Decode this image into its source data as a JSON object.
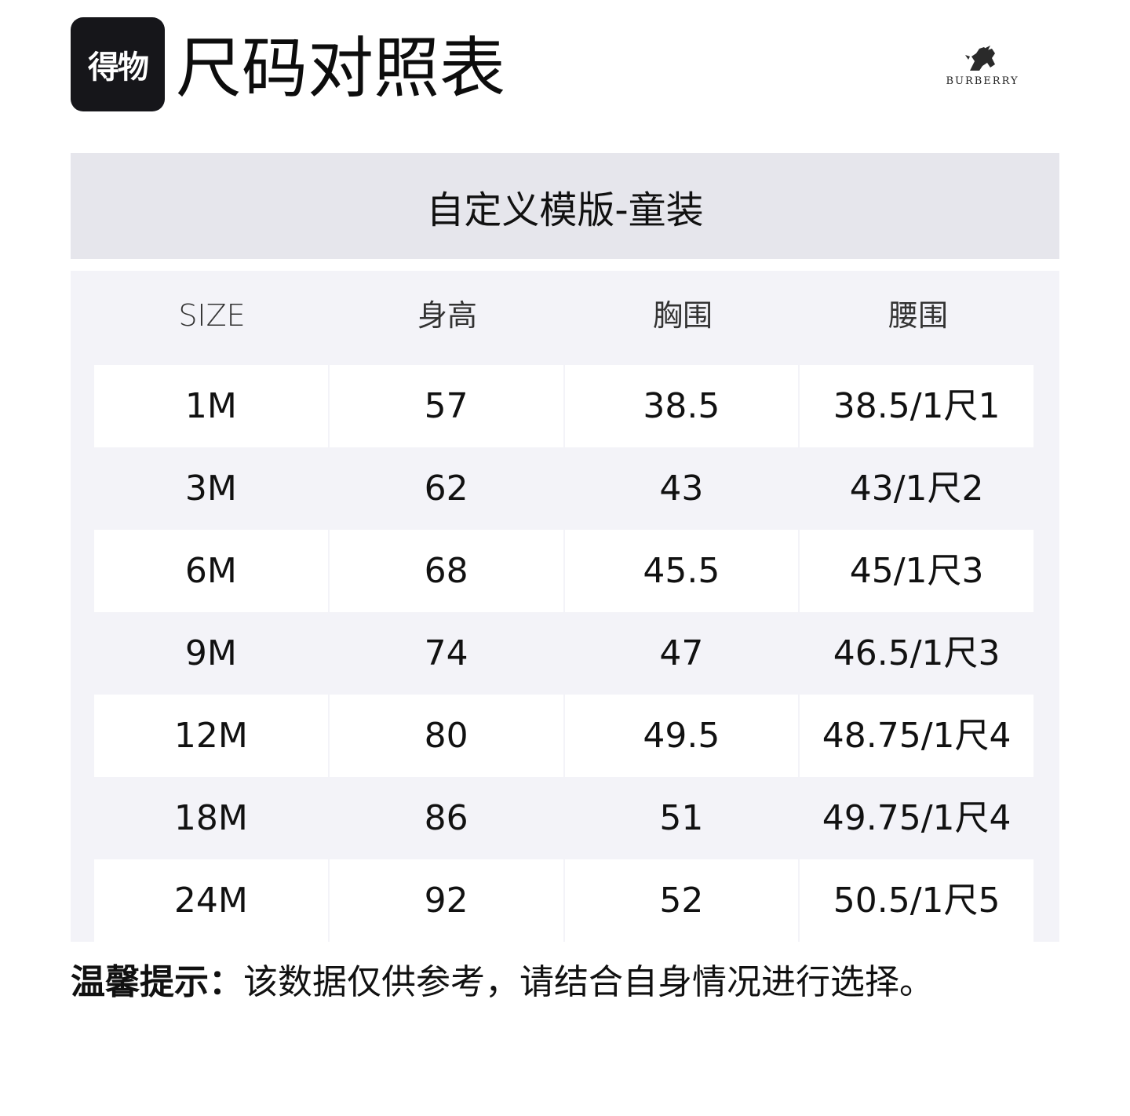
{
  "header": {
    "app_logo_text": "得物",
    "title": "尺码对照表",
    "brand_name": "BURBERRY"
  },
  "subtitle": "自定义模版-童装",
  "table": {
    "columns": [
      "SIZE",
      "身高",
      "胸围",
      "腰围"
    ],
    "rows": [
      [
        "1M",
        "57",
        "38.5",
        "38.5/1尺1"
      ],
      [
        "3M",
        "62",
        "43",
        "43/1尺2"
      ],
      [
        "6M",
        "68",
        "45.5",
        "45/1尺3"
      ],
      [
        "9M",
        "74",
        "47",
        "46.5/1尺3"
      ],
      [
        "12M",
        "80",
        "49.5",
        "48.75/1尺4"
      ],
      [
        "18M",
        "86",
        "51",
        "49.75/1尺4"
      ],
      [
        "24M",
        "92",
        "52",
        "50.5/1尺5"
      ]
    ]
  },
  "note": {
    "label": "温馨提示：",
    "text": "该数据仅供参考，请结合自身情况进行选择。"
  },
  "colors": {
    "logo_bg": "#16161a",
    "subtitle_bg": "#e6e6ec",
    "table_bg": "#f3f3f8",
    "row_white": "#ffffff"
  }
}
